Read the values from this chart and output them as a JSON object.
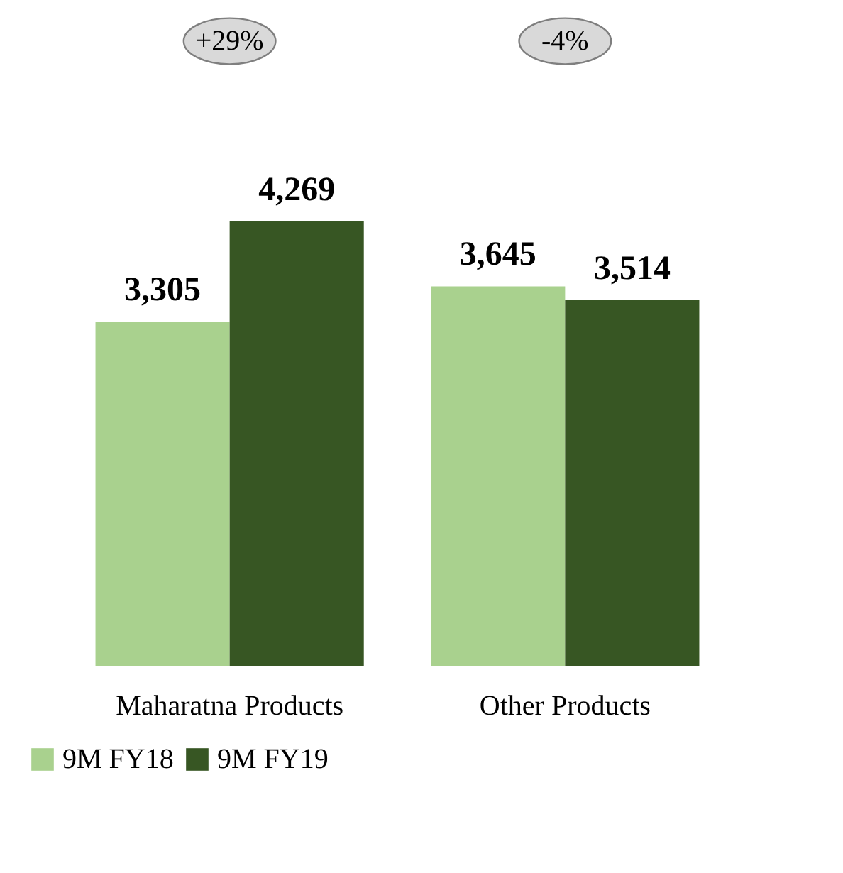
{
  "chart_data": {
    "type": "bar",
    "categories": [
      "Maharatna Products",
      "Other Products"
    ],
    "series": [
      {
        "name": "9M FY18",
        "color": "#a9d18e",
        "values": [
          3305,
          3645
        ],
        "value_labels": [
          "3,305",
          "3,645"
        ]
      },
      {
        "name": "9M FY19",
        "color": "#375623",
        "values": [
          4269,
          3514
        ],
        "value_labels": [
          "4,269",
          "3,514"
        ]
      }
    ],
    "legend": "bottom",
    "grid": false,
    "annotations": [
      "+29%",
      "-4%"
    ]
  }
}
